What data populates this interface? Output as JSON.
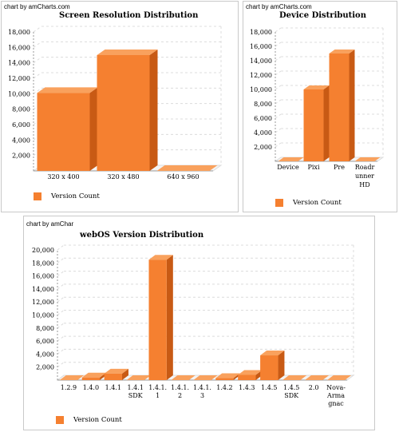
{
  "colors": {
    "bar": "#f58030",
    "bar_side": "#c85a14",
    "bar_top": "#f9a15d",
    "grid": "#dcdcdc",
    "axis": "#999999"
  },
  "chart_data": [
    {
      "type": "bar",
      "credit": "chart by amCharts.com",
      "title": "Screen Resolution Distribution",
      "categories": [
        "320 x 400",
        "320 x 480",
        "640 x 960"
      ],
      "category_lines": [
        [
          "320 x 400"
        ],
        [
          "320 x 480"
        ],
        [
          "640 x 960"
        ]
      ],
      "series": [
        {
          "name": "Version Count",
          "values": [
            10100,
            15000,
            0
          ]
        }
      ],
      "yticks": [
        "2,000",
        "4,000",
        "6,000",
        "8,000",
        "10,000",
        "12,000",
        "14,000",
        "16,000",
        "18,000"
      ],
      "ylim": [
        0,
        18000
      ],
      "grid": true,
      "legend": "bottom-left",
      "xlabel": "",
      "ylabel": ""
    },
    {
      "type": "bar",
      "credit": "chart by amCharts.com",
      "title": "Device Distribution",
      "categories": [
        "Device",
        "Pixi",
        "Pre",
        "Roadrunner HD"
      ],
      "category_lines": [
        [
          "Device"
        ],
        [
          "Pixi"
        ],
        [
          "Pre"
        ],
        [
          "Roadr",
          "unner",
          "HD"
        ]
      ],
      "series": [
        {
          "name": "Version Count",
          "values": [
            0,
            10000,
            15000,
            0
          ]
        }
      ],
      "yticks": [
        "2,000",
        "4,000",
        "6,000",
        "8,000",
        "10,000",
        "12,000",
        "14,000",
        "16,000",
        "18,000"
      ],
      "ylim": [
        0,
        18000
      ],
      "grid": true,
      "legend": "bottom-left",
      "xlabel": "",
      "ylabel": ""
    },
    {
      "type": "bar",
      "credit": "chart by amChar",
      "title": "webOS Version Distribution",
      "categories": [
        "1.2.9",
        "1.4.0",
        "1.4.1",
        "1.4.1 SDK",
        "1.4.1.1",
        "1.4.1.2",
        "1.4.1.3",
        "1.4.2",
        "1.4.3",
        "1.4.5",
        "1.4.5 SDK",
        "2.0",
        "Nova-Armagnac"
      ],
      "category_lines": [
        [
          "1.2.9"
        ],
        [
          "1.4.0"
        ],
        [
          "1.4.1"
        ],
        [
          "1.4.1",
          "SDK"
        ],
        [
          "1.4.1.",
          "1"
        ],
        [
          "1.4.1.",
          "2"
        ],
        [
          "1.4.1.",
          "3"
        ],
        [
          "1.4.2"
        ],
        [
          "1.4.3"
        ],
        [
          "1.4.5"
        ],
        [
          "1.4.5",
          "SDK"
        ],
        [
          "2.0"
        ],
        [
          "Nova-",
          "Arma",
          "gnac"
        ]
      ],
      "series": [
        {
          "name": "Version Count",
          "values": [
            0,
            400,
            1000,
            0,
            18500,
            0,
            0,
            300,
            800,
            3800,
            0,
            0,
            0
          ]
        }
      ],
      "yticks": [
        "2,000",
        "4,000",
        "6,000",
        "8,000",
        "10,000",
        "12,000",
        "14,000",
        "16,000",
        "18,000",
        "20,000"
      ],
      "ylim": [
        0,
        20000
      ],
      "grid": true,
      "legend": "bottom-left",
      "xlabel": "",
      "ylabel": ""
    }
  ]
}
